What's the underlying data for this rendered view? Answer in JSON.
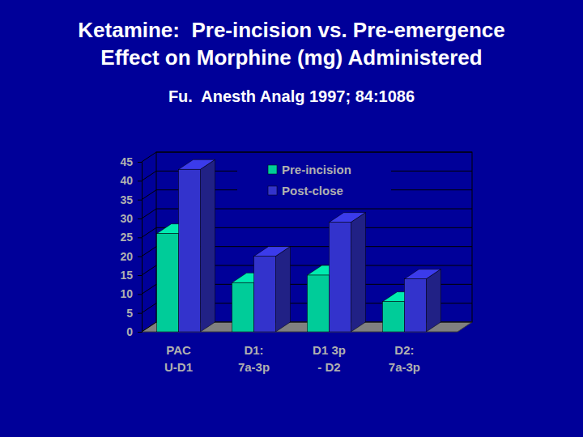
{
  "chart_data": {
    "type": "bar",
    "title": "Ketamine:  Pre-incision vs. Pre-emergence\nEffect on Morphine (mg) Administered",
    "subtitle": "Fu.  Anesth Analg 1997; 84:1086",
    "categories": [
      "PAC\nU-D1",
      "D1:\n7a-3p",
      "D1 3p\n- D2",
      "D2:\n7a-3p"
    ],
    "series": [
      {
        "name": "Pre-incision",
        "color": "#00cc99",
        "values": [
          26,
          13,
          15,
          8
        ]
      },
      {
        "name": "Post-close",
        "color": "#3333cc",
        "values": [
          43,
          20,
          29,
          14
        ]
      }
    ],
    "ylim": [
      0,
      45
    ],
    "yticks": [
      0,
      5,
      10,
      15,
      20,
      25,
      30,
      35,
      40,
      45
    ],
    "grid": true,
    "legend": "top"
  }
}
